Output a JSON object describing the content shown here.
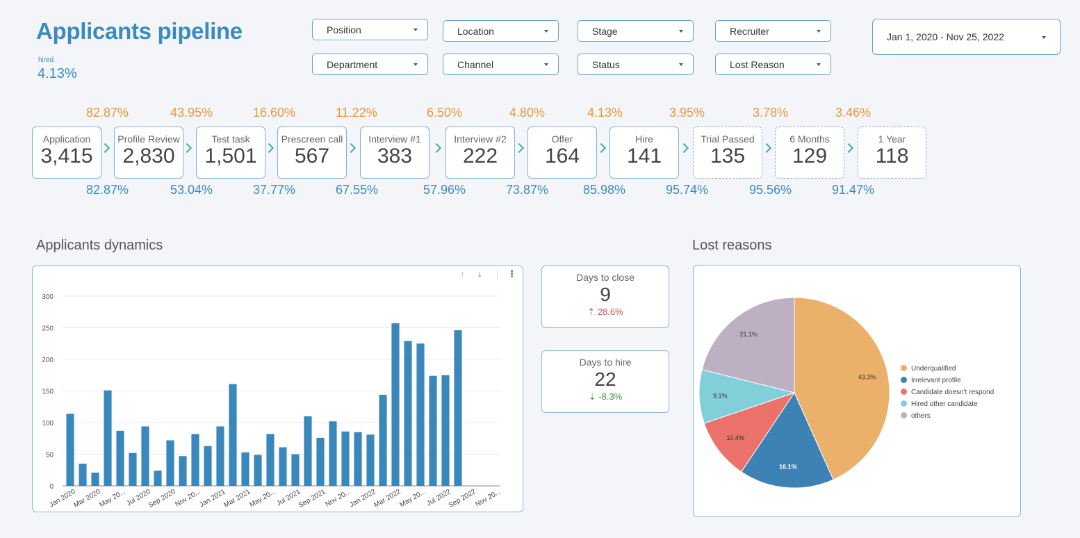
{
  "header": {
    "title": "Applicants pipeline",
    "hired_label": "hired",
    "hired_value": "4.13%"
  },
  "filters": {
    "position": "Position",
    "location": "Location",
    "stage": "Stage",
    "recruiter": "Recruiter",
    "department": "Department",
    "channel": "Channel",
    "status": "Status",
    "lost_reason": "Lost Reason",
    "date_range": "Jan 1, 2020 - Nov 25, 2022"
  },
  "funnel": {
    "top_pcts": [
      "82.87%",
      "43.95%",
      "16.60%",
      "11.22%",
      "6.50%",
      "4.80%",
      "4.13%",
      "3.95%",
      "3.78%",
      "3.46%"
    ],
    "bottom_pcts": [
      "82.87%",
      "53.04%",
      "37.77%",
      "67.55%",
      "57.96%",
      "73.87%",
      "85.98%",
      "95.74%",
      "95.56%",
      "91.47%"
    ],
    "stages": [
      {
        "label": "Application",
        "value": "3,415"
      },
      {
        "label": "Profile Review",
        "value": "2,830"
      },
      {
        "label": "Test task",
        "value": "1,501"
      },
      {
        "label": "Prescreen call",
        "value": "567"
      },
      {
        "label": "Interview #1",
        "value": "383"
      },
      {
        "label": "Interview #2",
        "value": "222"
      },
      {
        "label": "Offer",
        "value": "164"
      },
      {
        "label": "Hire",
        "value": "141"
      },
      {
        "label": "Trial Passed",
        "value": "135"
      },
      {
        "label": "6 Months",
        "value": "129"
      },
      {
        "label": "1 Year",
        "value": "118"
      }
    ]
  },
  "sections": {
    "dynamics": "Applicants dynamics",
    "lost": "Lost reasons"
  },
  "kpis": {
    "close": {
      "label": "Days to close",
      "value": "9",
      "delta": "28.6%",
      "arrow": "⇡"
    },
    "hire": {
      "label": "Days to hire",
      "value": "22",
      "delta": "-8.3%",
      "arrow": "⇣"
    }
  },
  "toolbar": {
    "sort_up": "↑",
    "sort_down": "↓",
    "more": "⋮"
  },
  "colors": {
    "accent": "#3b8bbf",
    "orange": "#e9983a",
    "teal": "#3fb0a6",
    "bar": "#3a87bb"
  },
  "chart_data": [
    {
      "type": "bar",
      "title": "Applicants dynamics",
      "x_tick_labels": [
        "Jan 2020",
        "Mar 2020",
        "May 20...",
        "Jul 2020",
        "Sep 2020",
        "Nov 20...",
        "Jan 2021",
        "Mar 2021",
        "May 20...",
        "Jul 2021",
        "Sep 2021",
        "Nov 20...",
        "Jan 2022",
        "Mar 2022",
        "May 20...",
        "Jul 2022",
        "Sep 2022",
        "Nov 20..."
      ],
      "values": [
        114,
        35,
        21,
        151,
        87,
        52,
        94,
        24,
        72,
        47,
        82,
        63,
        94,
        161,
        53,
        49,
        82,
        61,
        50,
        110,
        76,
        102,
        86,
        85,
        81,
        144,
        257,
        229,
        225,
        174,
        175,
        246,
        null,
        null,
        null
      ],
      "y_ticks": [
        0,
        50,
        100,
        150,
        200,
        250,
        300
      ],
      "ylim": [
        0,
        300
      ]
    },
    {
      "type": "pie",
      "title": "Lost reasons",
      "labels": [
        "Underqualified",
        "Irrelevant profile",
        "Candidate doesn't respond",
        "Hired other candidate",
        "others"
      ],
      "values": [
        43.3,
        16.1,
        10.4,
        9.1,
        21.1
      ],
      "value_labels": [
        "43.3%",
        "16.1%",
        "10.4%",
        "9.1%",
        "21.1%"
      ],
      "colors": [
        "#ebb06a",
        "#3c82b4",
        "#ea726b",
        "#81cfd8",
        "#bdb0c2"
      ],
      "legend": "right"
    }
  ]
}
